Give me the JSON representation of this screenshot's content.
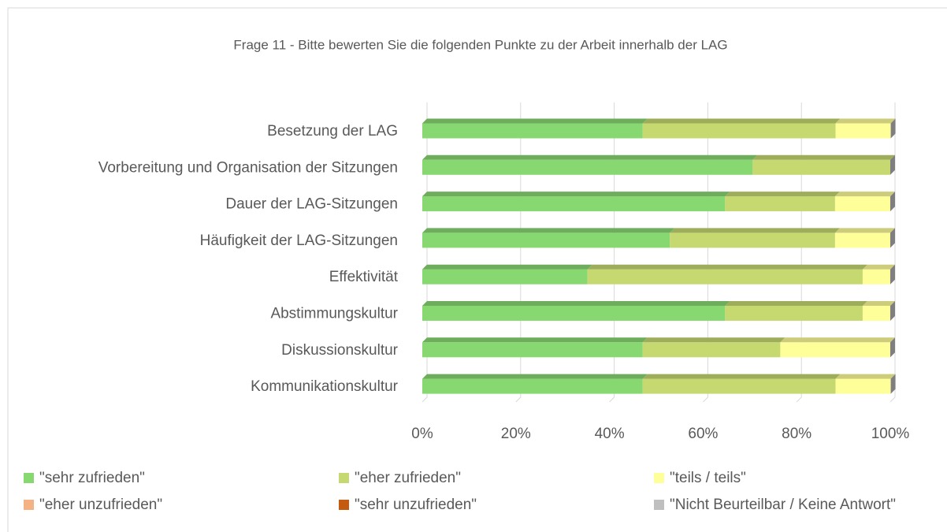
{
  "chart_data": {
    "type": "stacked-bar-horizontal",
    "title": "Frage 11 - Bitte bewerten Sie die folgenden Punkte zu der Arbeit innerhalb der LAG",
    "categories": [
      "Besetzung der LAG",
      "Vorbereitung und Organisation der Sitzungen",
      "Dauer der LAG-Sitzungen",
      "Häufigkeit der LAG-Sitzungen",
      "Effektivität ",
      "Abstimmungskultur ",
      "Diskussionskultur",
      "Kommunikationskultur "
    ],
    "series": [
      {
        "name": "\"sehr zufrieden\"",
        "color": "#88d872",
        "values": [
          47.1,
          70.6,
          64.7,
          52.9,
          35.3,
          64.7,
          47.1,
          47.1
        ]
      },
      {
        "name": "\"eher zufrieden\"",
        "color": "#c6d870",
        "values": [
          41.2,
          29.4,
          23.5,
          35.3,
          58.8,
          29.4,
          29.4,
          41.2
        ]
      },
      {
        "name": "\"teils / teils\"",
        "color": "#ffff99",
        "values": [
          11.8,
          0,
          11.8,
          11.8,
          5.9,
          5.9,
          23.5,
          11.8
        ]
      },
      {
        "name": "\"eher unzufrieden\"",
        "color": "#f4b183",
        "values": [
          0,
          0,
          0,
          0,
          0,
          0,
          0,
          0
        ]
      },
      {
        "name": "\"sehr unzufrieden\"",
        "color": "#c55a11",
        "values": [
          0,
          0,
          0,
          0,
          0,
          0,
          0,
          0
        ]
      },
      {
        "name": "\"Nicht Beurteilbar / Keine Antwort\"",
        "color": "#bfbfbf",
        "values": [
          0,
          0,
          0,
          0,
          0,
          0,
          0,
          0
        ]
      }
    ],
    "xlim": [
      0,
      100
    ],
    "xticks": [
      {
        "value": 0,
        "label": "0%"
      },
      {
        "value": 20,
        "label": "20%"
      },
      {
        "value": 40,
        "label": "40%"
      },
      {
        "value": 60,
        "label": "60%"
      },
      {
        "value": 80,
        "label": "80%"
      },
      {
        "value": 100,
        "label": "100%"
      }
    ],
    "grid": true,
    "legend": "bottom"
  }
}
